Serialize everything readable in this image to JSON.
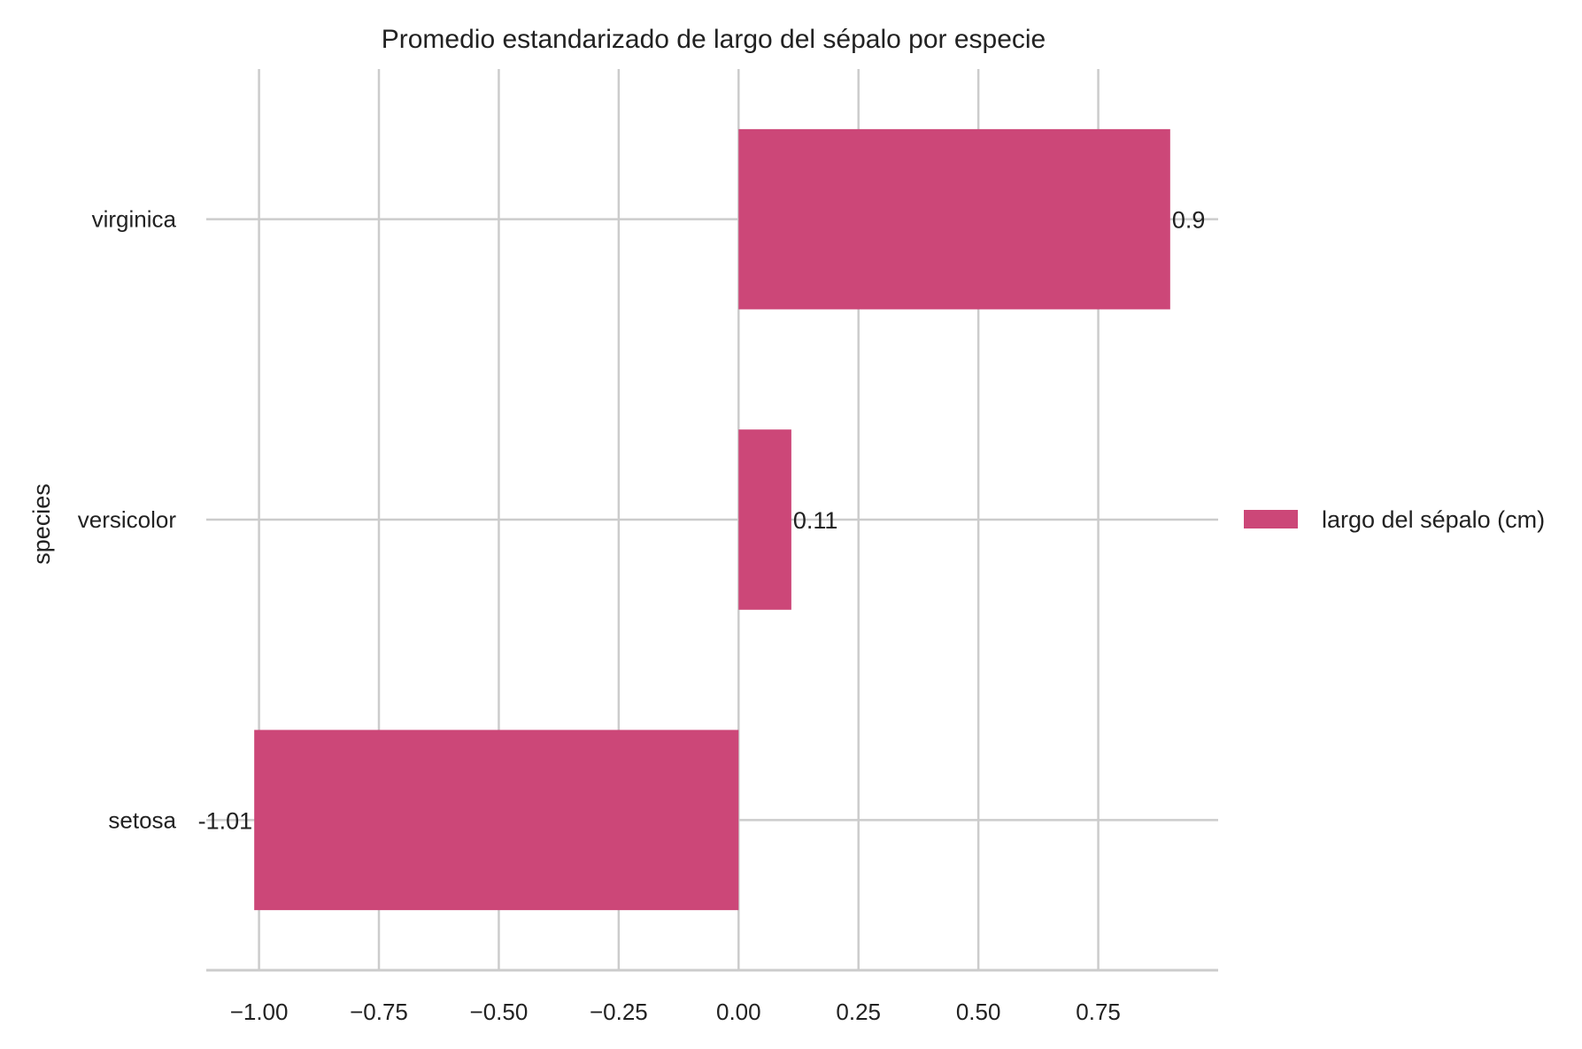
{
  "chart_data": {
    "type": "bar",
    "orientation": "horizontal",
    "title": "Promedio estandarizado de largo del sépalo por especie",
    "ylabel": "species",
    "xlabel": "",
    "categories": [
      "setosa",
      "versicolor",
      "virginica"
    ],
    "series": [
      {
        "name": "largo del sépalo (cm)",
        "values": [
          -1.01,
          0.11,
          0.9
        ],
        "data_labels": [
          "-1.01",
          "0.11",
          "0.9"
        ],
        "color": "#cc4778"
      }
    ],
    "x_ticks": [
      "−1.00",
      "−0.75",
      "−0.50",
      "−0.25",
      "0.00",
      "0.25",
      "0.50",
      "0.75"
    ],
    "x_tick_values": [
      -1.0,
      -0.75,
      -0.5,
      -0.25,
      0.0,
      0.25,
      0.5,
      0.75
    ],
    "xlim": [
      -1.11,
      1.0
    ],
    "grid": true,
    "legend_position": "right"
  }
}
